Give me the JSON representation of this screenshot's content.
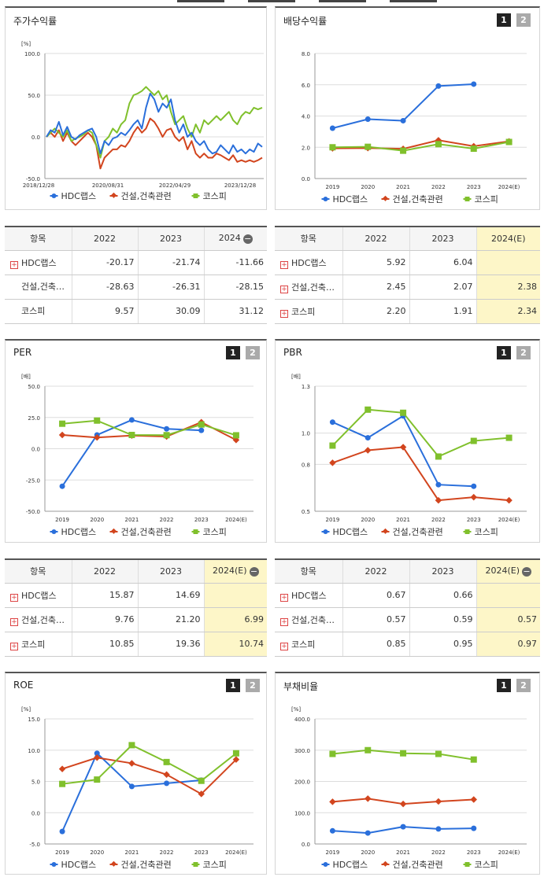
{
  "palette": {
    "hdc": "#2a6fdb",
    "const": "#d2451e",
    "kospi": "#80c02c"
  },
  "legend": [
    "HDC랩스",
    "건설,건축관련",
    "코스피"
  ],
  "stock": {
    "title": "주가수익률",
    "unit": "[%]",
    "yticks": [
      "100.0",
      "50.0",
      "0.0",
      "-50.0"
    ],
    "xticks": [
      "2018/12/28",
      "2020/08/31",
      "2022/04/29",
      "2023/12/28"
    ],
    "table": {
      "header": [
        "항목",
        "2022",
        "2023",
        "2024"
      ],
      "rows": [
        {
          "name": "HDC랩스",
          "plus": true,
          "v": [
            "-20.17",
            "-21.74",
            "-11.66"
          ]
        },
        {
          "name": "건설,건축…",
          "plus": false,
          "v": [
            "-28.63",
            "-26.31",
            "-28.15"
          ]
        },
        {
          "name": "코스피",
          "plus": false,
          "v": [
            "9.57",
            "30.09",
            "31.12"
          ]
        }
      ]
    }
  },
  "dividend": {
    "title": "배당수익률",
    "unit": "",
    "pages": [
      "1",
      "2"
    ],
    "table": {
      "header": [
        "항목",
        "2022",
        "2023",
        "2024(E)"
      ],
      "rows": [
        {
          "name": "HDC랩스",
          "plus": true,
          "v": [
            "5.92",
            "6.04",
            ""
          ]
        },
        {
          "name": "건설,건축…",
          "plus": true,
          "v": [
            "2.45",
            "2.07",
            "2.38"
          ]
        },
        {
          "name": "코스피",
          "plus": true,
          "v": [
            "2.20",
            "1.91",
            "2.34"
          ]
        }
      ]
    }
  },
  "per": {
    "title": "PER",
    "unit": "[배]",
    "pages": [
      "1",
      "2"
    ],
    "table": {
      "header": [
        "항목",
        "2022",
        "2023",
        "2024(E)"
      ],
      "rows": [
        {
          "name": "HDC랩스",
          "plus": true,
          "v": [
            "15.87",
            "14.69",
            ""
          ]
        },
        {
          "name": "건설,건축…",
          "plus": true,
          "v": [
            "9.76",
            "21.20",
            "6.99"
          ]
        },
        {
          "name": "코스피",
          "plus": true,
          "v": [
            "10.85",
            "19.36",
            "10.74"
          ]
        }
      ]
    }
  },
  "pbr": {
    "title": "PBR",
    "unit": "[배]",
    "pages": [
      "1",
      "2"
    ],
    "table": {
      "header": [
        "항목",
        "2022",
        "2023",
        "2024(E)"
      ],
      "rows": [
        {
          "name": "HDC랩스",
          "plus": true,
          "v": [
            "0.67",
            "0.66",
            ""
          ]
        },
        {
          "name": "건설,건축…",
          "plus": true,
          "v": [
            "0.57",
            "0.59",
            "0.57"
          ]
        },
        {
          "name": "코스피",
          "plus": true,
          "v": [
            "0.85",
            "0.95",
            "0.97"
          ]
        }
      ]
    }
  },
  "roe": {
    "title": "ROE",
    "unit": "[%]",
    "pages": [
      "1",
      "2"
    ]
  },
  "debt": {
    "title": "부채비율",
    "unit": "[%]",
    "pages": [
      "1",
      "2"
    ]
  },
  "chart_data": [
    {
      "id": "stock",
      "type": "line",
      "ylim": [
        -50,
        100
      ],
      "yticks": [
        100,
        50,
        0,
        -50
      ],
      "x_labels": [
        "2018/12/28",
        "2020/08/31",
        "2022/04/29",
        "2023/12/28"
      ],
      "series": [
        {
          "name": "HDC랩스",
          "values": [
            0,
            8,
            5,
            18,
            2,
            12,
            0,
            -3,
            2,
            5,
            8,
            10,
            0,
            -20,
            -5,
            -10,
            -2,
            0,
            5,
            2,
            8,
            15,
            20,
            10,
            35,
            52,
            45,
            30,
            40,
            35,
            45,
            20,
            5,
            15,
            0,
            5,
            -5,
            -10,
            -5,
            -15,
            -20,
            -18,
            -10,
            -15,
            -20,
            -10,
            -18,
            -15,
            -20,
            -15,
            -18,
            -8,
            -12
          ]
        },
        {
          "name": "건설,건축관련",
          "values": [
            0,
            5,
            0,
            8,
            -5,
            5,
            -5,
            -10,
            -5,
            0,
            5,
            0,
            -10,
            -38,
            -25,
            -20,
            -15,
            -15,
            -10,
            -12,
            -5,
            5,
            12,
            5,
            10,
            22,
            18,
            10,
            0,
            8,
            10,
            0,
            -5,
            0,
            -15,
            -5,
            -20,
            -25,
            -20,
            -25,
            -25,
            -20,
            -22,
            -25,
            -28,
            -22,
            -30,
            -28,
            -30,
            -28,
            -30,
            -28,
            -25
          ]
        },
        {
          "name": "코스피",
          "values": [
            0,
            5,
            10,
            5,
            0,
            8,
            -5,
            -2,
            0,
            3,
            8,
            5,
            -10,
            -25,
            -5,
            0,
            10,
            5,
            15,
            20,
            40,
            50,
            52,
            55,
            60,
            55,
            50,
            55,
            45,
            50,
            30,
            15,
            20,
            25,
            10,
            0,
            15,
            5,
            20,
            15,
            20,
            25,
            20,
            25,
            30,
            20,
            15,
            25,
            30,
            28,
            35,
            33,
            35
          ]
        }
      ]
    },
    {
      "id": "dividend",
      "type": "line",
      "ylim": [
        0,
        8
      ],
      "yticks": [
        8.0,
        6.0,
        4.0,
        2.0,
        0.0
      ],
      "x": [
        "2019",
        "2020",
        "2021",
        "2022",
        "2023",
        "2024(E)"
      ],
      "series": [
        {
          "name": "HDC랩스",
          "values": [
            3.22,
            3.8,
            3.7,
            5.92,
            6.04,
            null
          ]
        },
        {
          "name": "건설,건축관련",
          "values": [
            1.93,
            1.95,
            1.9,
            2.45,
            2.07,
            2.38
          ]
        },
        {
          "name": "코스피",
          "values": [
            2.0,
            2.03,
            1.78,
            2.2,
            1.91,
            2.34
          ]
        }
      ]
    },
    {
      "id": "per",
      "type": "line",
      "ylim": [
        -50,
        50
      ],
      "yticks": [
        50.0,
        25.0,
        0.0,
        -25.0,
        -50.0
      ],
      "x": [
        "2019",
        "2020",
        "2021",
        "2022",
        "2023",
        "2024(E)"
      ],
      "series": [
        {
          "name": "HDC랩스",
          "values": [
            -30,
            11,
            23,
            15.87,
            14.69,
            null
          ]
        },
        {
          "name": "건설,건축관련",
          "values": [
            11,
            9,
            10.5,
            9.76,
            21.2,
            6.99
          ]
        },
        {
          "name": "코스피",
          "values": [
            20,
            22.5,
            11,
            10.85,
            19.36,
            10.74
          ]
        }
      ]
    },
    {
      "id": "pbr",
      "type": "line",
      "ylim": [
        0.5,
        1.3
      ],
      "yticks": [
        1.3,
        1.0,
        0.8,
        0.5
      ],
      "x": [
        "2019",
        "2020",
        "2021",
        "2022",
        "2023",
        "2024(E)"
      ],
      "series": [
        {
          "name": "HDC랩스",
          "values": [
            1.07,
            0.97,
            1.11,
            0.67,
            0.66,
            null
          ]
        },
        {
          "name": "건설,건축관련",
          "values": [
            0.81,
            0.89,
            0.91,
            0.57,
            0.59,
            0.57
          ]
        },
        {
          "name": "코스피",
          "values": [
            0.92,
            1.15,
            1.13,
            0.85,
            0.95,
            0.97
          ]
        }
      ]
    },
    {
      "id": "roe",
      "type": "line",
      "ylim": [
        -5,
        15
      ],
      "yticks": [
        15.0,
        10.0,
        5.0,
        0.0,
        -5.0
      ],
      "x": [
        "2019",
        "2020",
        "2021",
        "2022",
        "2023",
        "2024(E)"
      ],
      "series": [
        {
          "name": "HDC랩스",
          "values": [
            -3.0,
            9.5,
            4.2,
            4.7,
            5.2,
            null
          ]
        },
        {
          "name": "건설,건축관련",
          "values": [
            7.0,
            8.8,
            7.9,
            6.1,
            3.0,
            8.5
          ]
        },
        {
          "name": "코스피",
          "values": [
            4.6,
            5.3,
            10.8,
            8.1,
            5.1,
            9.5
          ]
        }
      ]
    },
    {
      "id": "debt",
      "type": "line",
      "ylim": [
        0,
        400
      ],
      "yticks": [
        400.0,
        300.0,
        200.0,
        100.0,
        0.0
      ],
      "x": [
        "2019",
        "2020",
        "2021",
        "2022",
        "2023",
        "2024(E)"
      ],
      "series": [
        {
          "name": "HDC랩스",
          "values": [
            42,
            35,
            55,
            48,
            50,
            null
          ]
        },
        {
          "name": "건설,건축관련",
          "values": [
            135,
            145,
            128,
            136,
            142,
            null
          ]
        },
        {
          "name": "코스피",
          "values": [
            288,
            300,
            290,
            288,
            270,
            null
          ]
        }
      ]
    }
  ]
}
